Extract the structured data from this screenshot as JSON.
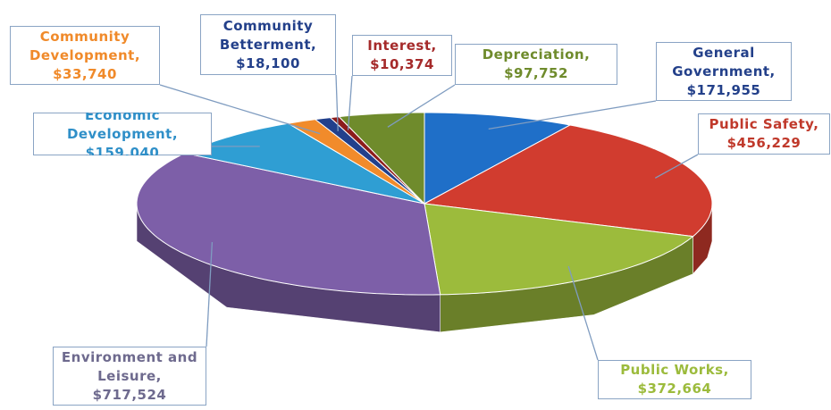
{
  "chart_data": {
    "type": "pie",
    "categories": [
      "General Government,",
      "Public Safety,",
      "Public Works,",
      "Environment and Leisure,",
      "Economic Development,",
      "Community Development,",
      "Community Betterment,",
      "Interest,",
      "Depreciation,"
    ],
    "values": [
      171955,
      456229,
      372664,
      717524,
      159040,
      33740,
      18100,
      10374,
      97752
    ],
    "value_labels": [
      "$171,955",
      "$456,229",
      "$372,664",
      "$717,524",
      "$159,040",
      "$33,740",
      "$18,100",
      "$10,374",
      "$97,752"
    ],
    "colors": [
      "#1f6fc8",
      "#d13c2f",
      "#9cbb3c",
      "#7d5fa8",
      "#2f9ed3",
      "#f18b2b",
      "#22408c",
      "#8c1c1c",
      "#6f8b2c"
    ],
    "label_colors": [
      "#23408a",
      "#c0392b",
      "#9cbb3c",
      "#6e6a8e",
      "#2f8fc8",
      "#f08a2a",
      "#23408a",
      "#a52a2a",
      "#6f8b2c"
    ]
  }
}
